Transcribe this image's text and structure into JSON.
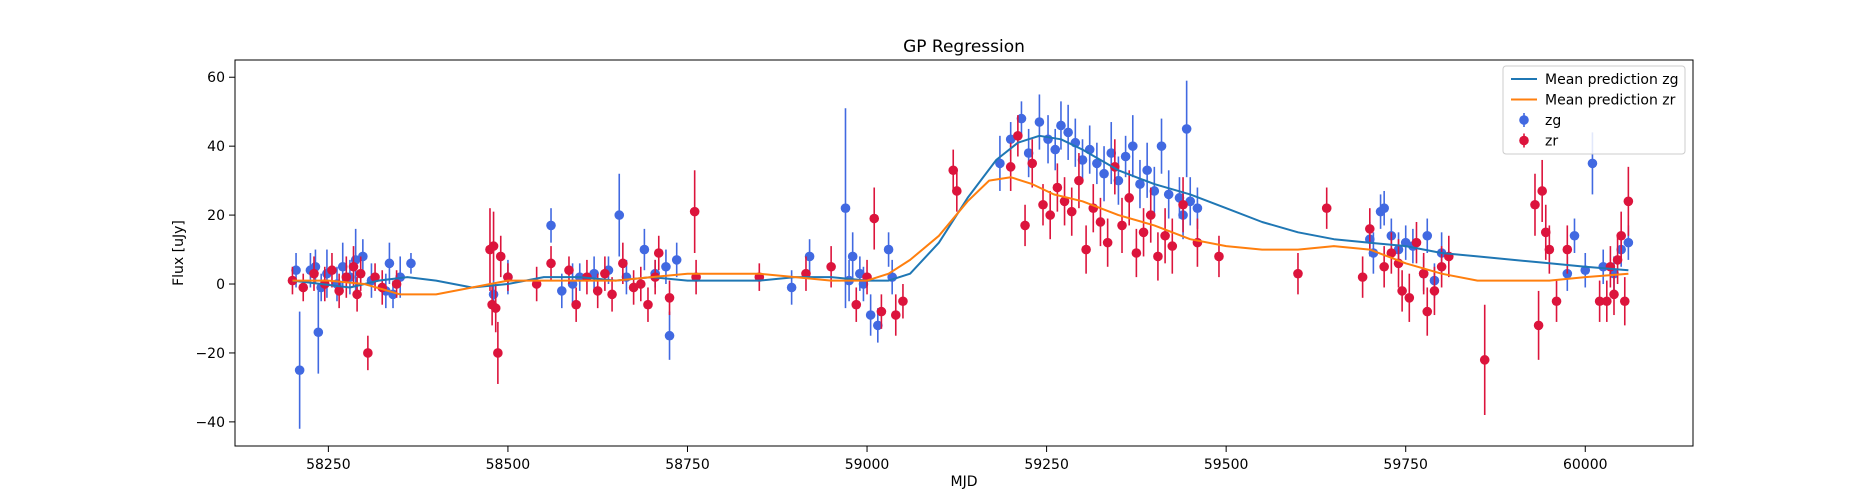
{
  "chart_data": {
    "type": "scatter",
    "title": "GP Regression",
    "xlabel": "MJD",
    "ylabel": "Flux [uJy]",
    "xlim": [
      58120,
      60150
    ],
    "ylim": [
      -47,
      65
    ],
    "x_ticks": [
      58250,
      58500,
      58750,
      59000,
      59250,
      59500,
      59750,
      60000
    ],
    "x_tick_labels": [
      "58250",
      "58500",
      "58750",
      "59000",
      "59250",
      "59500",
      "59750",
      "60000"
    ],
    "y_ticks": [
      -40,
      -20,
      0,
      20,
      40,
      60
    ],
    "y_tick_labels": [
      "−40",
      "−20",
      "0",
      "20",
      "40",
      "60"
    ],
    "grid": false,
    "legend_position": "upper-right",
    "legend": [
      {
        "label": "Mean prediction zg",
        "kind": "line",
        "color": "#1f77b4"
      },
      {
        "label": "Mean prediction zr",
        "kind": "line",
        "color": "#ff7f0e"
      },
      {
        "label": "zg",
        "kind": "errorbar",
        "color": "#4169e1"
      },
      {
        "label": "zr",
        "kind": "errorbar",
        "color": "#dc143c"
      }
    ],
    "series": [
      {
        "name": "Mean prediction zg",
        "kind": "line",
        "color": "#1f77b4",
        "x": [
          58200,
          58240,
          58280,
          58320,
          58360,
          58400,
          58450,
          58500,
          58550,
          58600,
          58650,
          58700,
          58750,
          58800,
          58850,
          58900,
          58950,
          59000,
          59030,
          59060,
          59100,
          59140,
          59180,
          59210,
          59240,
          59270,
          59300,
          59350,
          59400,
          59450,
          59500,
          59550,
          59600,
          59650,
          59700,
          59750,
          59800,
          59850,
          59900,
          59950,
          60000,
          60060
        ],
        "y": [
          1,
          0,
          -1,
          1,
          2,
          1,
          -1,
          0,
          2,
          2,
          1,
          2,
          1,
          1,
          1,
          2,
          2,
          1,
          1,
          3,
          12,
          25,
          36,
          41,
          43,
          42,
          39,
          33,
          29,
          26,
          22,
          18,
          15,
          13,
          12,
          11,
          9,
          8,
          7,
          6,
          5,
          4
        ]
      },
      {
        "name": "Mean prediction zr",
        "kind": "line",
        "color": "#ff7f0e",
        "x": [
          58200,
          58250,
          58300,
          58350,
          58400,
          58450,
          58500,
          58550,
          58600,
          58650,
          58700,
          58750,
          58800,
          58850,
          58900,
          58950,
          59000,
          59030,
          59060,
          59100,
          59140,
          59170,
          59200,
          59230,
          59260,
          59300,
          59350,
          59400,
          59450,
          59500,
          59550,
          59600,
          59650,
          59700,
          59750,
          59800,
          59850,
          59900,
          59950,
          60000,
          60060
        ],
        "y": [
          1,
          1,
          0,
          -3,
          -3,
          -1,
          1,
          1,
          1,
          1,
          2,
          3,
          3,
          3,
          2,
          1,
          1,
          3,
          7,
          14,
          24,
          30,
          31,
          29,
          26,
          24,
          20,
          17,
          13,
          11,
          10,
          10,
          11,
          10,
          6,
          3,
          1,
          1,
          1,
          2,
          3
        ]
      },
      {
        "name": "zg",
        "kind": "errorbar",
        "color": "#4169e1",
        "x": [
          58205,
          58210,
          58225,
          58232,
          58236,
          58240,
          58248,
          58262,
          58270,
          58280,
          58288,
          58298,
          58310,
          58330,
          58335,
          58340,
          58350,
          58365,
          58480,
          58500,
          58560,
          58575,
          58590,
          58600,
          58620,
          58640,
          58655,
          58665,
          58690,
          58705,
          58720,
          58725,
          58735,
          58895,
          58920,
          58970,
          58975,
          58980,
          58990,
          58995,
          59005,
          59015,
          59030,
          59035,
          59185,
          59200,
          59215,
          59225,
          59240,
          59252,
          59262,
          59270,
          59280,
          59290,
          59300,
          59310,
          59320,
          59330,
          59340,
          59350,
          59360,
          59370,
          59380,
          59390,
          59400,
          59410,
          59420,
          59435,
          59440,
          59445,
          59450,
          59460,
          59700,
          59705,
          59715,
          59720,
          59730,
          59740,
          59750,
          59760,
          59775,
          59780,
          59790,
          59800,
          59975,
          59985,
          60000,
          60010,
          60025,
          60040,
          60050,
          60060
        ],
        "y": [
          4,
          -25,
          4,
          5,
          -14,
          -1,
          3,
          0,
          5,
          2,
          7,
          8,
          1,
          -2,
          6,
          -3,
          2,
          6,
          -3,
          2,
          17,
          -2,
          0,
          2,
          3,
          4,
          20,
          2,
          10,
          3,
          5,
          -15,
          7,
          -1,
          8,
          22,
          1,
          8,
          3,
          0,
          -9,
          -12,
          10,
          2,
          35,
          42,
          48,
          38,
          47,
          42,
          39,
          46,
          44,
          41,
          36,
          39,
          35,
          32,
          38,
          30,
          37,
          40,
          29,
          33,
          27,
          40,
          26,
          25,
          20,
          45,
          24,
          22,
          13,
          9,
          21,
          22,
          14,
          10,
          12,
          11,
          3,
          14,
          1,
          9,
          3,
          14,
          4,
          35,
          5,
          3,
          10,
          12
        ],
        "err": [
          5,
          17,
          5,
          5,
          12,
          4,
          7,
          5,
          7,
          5,
          9,
          5,
          5,
          5,
          6,
          4,
          6,
          3,
          4,
          5,
          5,
          5,
          6,
          4,
          5,
          4,
          12,
          5,
          6,
          4,
          5,
          7,
          5,
          5,
          5,
          29,
          6,
          7,
          5,
          5,
          6,
          5,
          5,
          5,
          8,
          5,
          5,
          7,
          8,
          7,
          6,
          7,
          8,
          7,
          6,
          7,
          6,
          8,
          9,
          7,
          6,
          9,
          7,
          8,
          7,
          8,
          7,
          6,
          7,
          14,
          7,
          6,
          5,
          6,
          5,
          5,
          5,
          5,
          5,
          5,
          5,
          5,
          5,
          6,
          5,
          5,
          5,
          9,
          5,
          5,
          5,
          5
        ]
      },
      {
        "name": "zr",
        "kind": "errorbar",
        "color": "#dc143c",
        "x": [
          58200,
          58215,
          58230,
          58245,
          58255,
          58265,
          58275,
          58285,
          58290,
          58295,
          58305,
          58315,
          58325,
          58345,
          58475,
          58478,
          58480,
          58483,
          58486,
          58490,
          58500,
          58540,
          58560,
          58585,
          58595,
          58610,
          58625,
          58635,
          58645,
          58660,
          58675,
          58685,
          58695,
          58705,
          58710,
          58725,
          58760,
          58762,
          58850,
          58915,
          58950,
          58985,
          59000,
          59010,
          59020,
          59040,
          59050,
          59120,
          59125,
          59200,
          59210,
          59220,
          59230,
          59245,
          59255,
          59265,
          59275,
          59285,
          59295,
          59305,
          59315,
          59325,
          59335,
          59345,
          59355,
          59365,
          59375,
          59385,
          59395,
          59405,
          59415,
          59425,
          59440,
          59460,
          59490,
          59600,
          59640,
          59690,
          59700,
          59720,
          59730,
          59740,
          59745,
          59755,
          59765,
          59775,
          59780,
          59790,
          59800,
          59810,
          59860,
          59930,
          59935,
          59940,
          59945,
          59950,
          59960,
          59975,
          60020,
          60030,
          60035,
          60040,
          60045,
          60050,
          60055,
          60060
        ],
        "y": [
          1,
          -1,
          3,
          0,
          4,
          -2,
          2,
          5,
          -3,
          3,
          -20,
          2,
          -1,
          0,
          10,
          -6,
          11,
          -7,
          -20,
          8,
          2,
          0,
          6,
          4,
          -6,
          2,
          -2,
          3,
          -3,
          6,
          -1,
          0,
          -6,
          2,
          9,
          -4,
          21,
          2,
          2,
          3,
          5,
          -6,
          2,
          19,
          -8,
          -9,
          -5,
          33,
          27,
          34,
          43,
          17,
          35,
          23,
          20,
          28,
          24,
          21,
          30,
          10,
          22,
          18,
          12,
          34,
          17,
          25,
          9,
          15,
          20,
          8,
          14,
          11,
          23,
          12,
          8,
          3,
          22,
          2,
          16,
          5,
          9,
          6,
          -2,
          -4,
          12,
          3,
          -8,
          -2,
          5,
          8,
          -22,
          23,
          -12,
          27,
          15,
          10,
          -5,
          10,
          -5,
          -5,
          5,
          -3,
          7,
          14,
          -5,
          24
        ],
        "err": [
          4,
          4,
          5,
          5,
          5,
          5,
          6,
          6,
          5,
          5,
          5,
          4,
          5,
          4,
          12,
          6,
          10,
          7,
          9,
          6,
          4,
          5,
          5,
          4,
          5,
          5,
          5,
          5,
          5,
          6,
          5,
          5,
          5,
          5,
          5,
          5,
          12,
          5,
          4,
          5,
          6,
          5,
          5,
          9,
          5,
          6,
          5,
          6,
          6,
          7,
          6,
          6,
          7,
          6,
          7,
          7,
          7,
          7,
          8,
          7,
          7,
          7,
          7,
          8,
          8,
          8,
          7,
          7,
          8,
          7,
          8,
          8,
          8,
          7,
          6,
          6,
          6,
          6,
          6,
          6,
          6,
          7,
          6,
          7,
          6,
          6,
          7,
          7,
          6,
          6,
          16,
          9,
          10,
          9,
          8,
          7,
          6,
          7,
          6,
          6,
          6,
          6,
          7,
          7,
          7,
          10
        ]
      }
    ]
  }
}
